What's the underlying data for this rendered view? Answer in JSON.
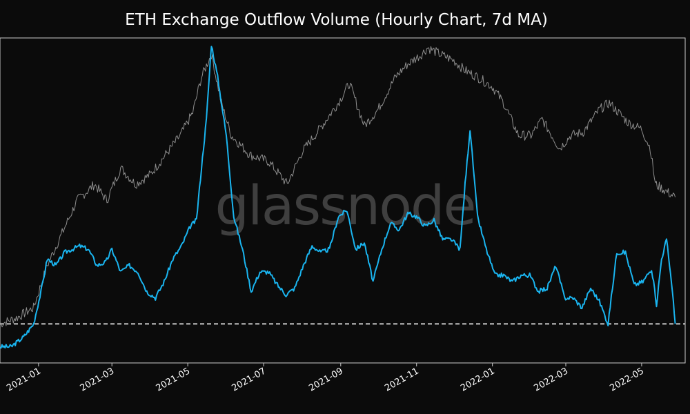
{
  "title": "ETH Exchange Outflow Volume (Hourly Chart, 7d MA)",
  "watermark": "glassnode",
  "colors": {
    "background": "#0b0b0b",
    "outflow_line": "#1ab5f0",
    "price_line": "#8e8e8e",
    "baseline": "#ffffff",
    "axes": "#cccccc",
    "text": "#ffffff"
  },
  "chart_data": {
    "type": "line",
    "xlabel": "",
    "ylabel": "",
    "xlim": [
      "2020-12-01",
      "2022-06-05"
    ],
    "ylim": [
      0,
      100
    ],
    "grid": false,
    "x_ticks": [
      "2021-01",
      "2021-03",
      "2021-05",
      "2021-07",
      "2021-09",
      "2021-11",
      "2022-01",
      "2022-03",
      "2022-05"
    ],
    "reference_line": {
      "y": 12,
      "style": "dashed"
    },
    "series": [
      {
        "role": "outflow",
        "x": [
          "2020-12-01",
          "2020-12-10",
          "2020-12-20",
          "2020-12-28",
          "2021-01-03",
          "2021-01-08",
          "2021-01-15",
          "2021-01-22",
          "2021-01-28",
          "2021-02-03",
          "2021-02-10",
          "2021-02-17",
          "2021-02-24",
          "2021-03-01",
          "2021-03-08",
          "2021-03-15",
          "2021-03-22",
          "2021-03-29",
          "2021-04-05",
          "2021-04-12",
          "2021-04-19",
          "2021-04-26",
          "2021-05-03",
          "2021-05-08",
          "2021-05-12",
          "2021-05-16",
          "2021-05-20",
          "2021-05-25",
          "2021-06-01",
          "2021-06-07",
          "2021-06-14",
          "2021-06-21",
          "2021-06-28",
          "2021-07-05",
          "2021-07-12",
          "2021-07-19",
          "2021-07-26",
          "2021-08-02",
          "2021-08-09",
          "2021-08-16",
          "2021-08-23",
          "2021-08-30",
          "2021-09-06",
          "2021-09-13",
          "2021-09-20",
          "2021-09-27",
          "2021-10-04",
          "2021-10-11",
          "2021-10-18",
          "2021-10-25",
          "2021-11-01",
          "2021-11-08",
          "2021-11-15",
          "2021-11-22",
          "2021-11-29",
          "2021-12-06",
          "2021-12-10",
          "2021-12-14",
          "2021-12-20",
          "2021-12-27",
          "2022-01-03",
          "2022-01-10",
          "2022-01-17",
          "2022-01-24",
          "2022-01-31",
          "2022-02-07",
          "2022-02-14",
          "2022-02-21",
          "2022-02-28",
          "2022-03-07",
          "2022-03-14",
          "2022-03-21",
          "2022-03-28",
          "2022-04-04",
          "2022-04-11",
          "2022-04-18",
          "2022-04-25",
          "2022-05-02",
          "2022-05-09",
          "2022-05-13",
          "2022-05-17",
          "2022-05-21",
          "2022-05-25",
          "2022-05-28"
        ],
        "values": [
          5,
          5,
          8,
          12,
          22,
          32,
          30,
          34,
          35,
          36,
          35,
          30,
          31,
          35,
          28,
          30,
          28,
          22,
          20,
          25,
          32,
          36,
          42,
          44,
          60,
          75,
          98,
          88,
          70,
          45,
          35,
          22,
          28,
          28,
          24,
          21,
          23,
          30,
          36,
          34,
          35,
          45,
          47,
          35,
          37,
          25,
          35,
          43,
          41,
          46,
          45,
          42,
          44,
          38,
          38,
          35,
          55,
          72,
          45,
          35,
          27,
          27,
          25,
          27,
          27,
          22,
          23,
          30,
          20,
          20,
          17,
          23,
          19,
          12,
          34,
          34,
          24,
          25,
          29,
          18,
          32,
          38,
          25,
          12
        ]
      },
      {
        "role": "price",
        "x": [
          "2020-12-01",
          "2020-12-15",
          "2020-12-28",
          "2021-01-08",
          "2021-01-20",
          "2021-02-01",
          "2021-02-15",
          "2021-02-25",
          "2021-03-08",
          "2021-03-20",
          "2021-04-01",
          "2021-04-15",
          "2021-04-25",
          "2021-05-05",
          "2021-05-12",
          "2021-05-20",
          "2021-05-28",
          "2021-06-05",
          "2021-06-20",
          "2021-07-05",
          "2021-07-20",
          "2021-08-01",
          "2021-08-15",
          "2021-08-30",
          "2021-09-08",
          "2021-09-20",
          "2021-10-01",
          "2021-10-15",
          "2021-10-25",
          "2021-11-05",
          "2021-11-10",
          "2021-11-20",
          "2021-12-01",
          "2021-12-10",
          "2021-12-20",
          "2022-01-01",
          "2022-01-10",
          "2022-01-22",
          "2022-02-01",
          "2022-02-10",
          "2022-02-24",
          "2022-03-05",
          "2022-03-15",
          "2022-03-28",
          "2022-04-05",
          "2022-04-20",
          "2022-05-01",
          "2022-05-08",
          "2022-05-12",
          "2022-05-20",
          "2022-05-28"
        ],
        "values": [
          12,
          14,
          17,
          30,
          40,
          50,
          55,
          50,
          60,
          55,
          58,
          65,
          70,
          77,
          88,
          95,
          80,
          70,
          64,
          62,
          55,
          65,
          72,
          80,
          86,
          73,
          78,
          88,
          92,
          95,
          97,
          95,
          93,
          90,
          88,
          85,
          80,
          70,
          70,
          75,
          66,
          70,
          71,
          78,
          80,
          74,
          72,
          66,
          55,
          53,
          51
        ]
      }
    ]
  }
}
